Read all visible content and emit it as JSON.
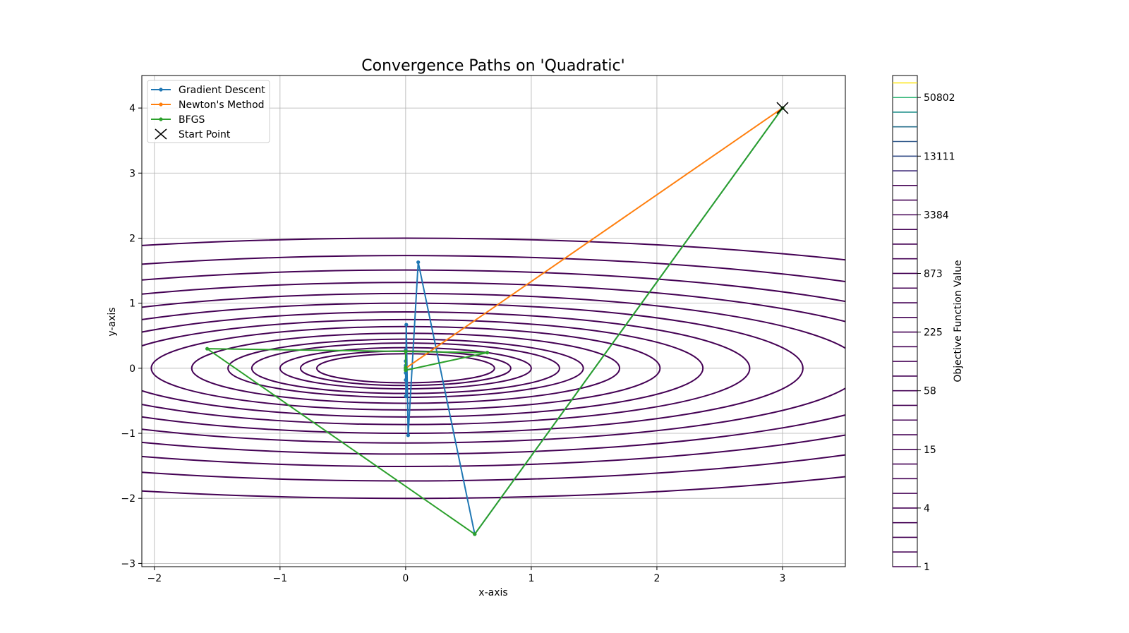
{
  "chart_data": {
    "type": "line",
    "title": "Convergence Paths on 'Quadratic'",
    "xlabel": "x-axis",
    "ylabel": "y-axis",
    "xlim": [
      -2.1,
      3.5
    ],
    "ylim": [
      -3.05,
      4.5
    ],
    "xticks": [
      -2,
      -1,
      0,
      1,
      2,
      3
    ],
    "xtick_labels": [
      "−2",
      "−1",
      "0",
      "1",
      "2",
      "3"
    ],
    "yticks": [
      -3,
      -2,
      -1,
      0,
      1,
      2,
      3,
      4
    ],
    "ytick_labels": [
      "−3",
      "−2",
      "−1",
      "0",
      "1",
      "2",
      "3",
      "4"
    ],
    "grid": true,
    "legend_position": "top-left",
    "contour": {
      "function": "x^2 + 10*y^2",
      "levels": [
        0.5,
        0.7,
        1.0,
        1.5,
        2.0,
        2.9,
        4.1,
        5.6,
        7.5,
        10.0,
        13.2,
        17.4,
        22.8,
        30.0,
        40.0
      ],
      "color": "#440154"
    },
    "series": [
      {
        "name": "Gradient Descent",
        "color": "#1f77b4",
        "marker": "dot",
        "points": [
          [
            3.0,
            4.0
          ],
          [
            0.55,
            -2.55
          ],
          [
            0.1,
            1.63
          ],
          [
            0.02,
            -1.03
          ],
          [
            0.005,
            0.67
          ],
          [
            0.002,
            -0.43
          ],
          [
            0.001,
            0.28
          ],
          [
            0.0,
            -0.18
          ],
          [
            0.0,
            0.11
          ],
          [
            0.0,
            -0.07
          ],
          [
            0.0,
            0.04
          ],
          [
            0.0,
            -0.02
          ],
          [
            0.0,
            0.01
          ],
          [
            0.0,
            0.0
          ]
        ]
      },
      {
        "name": "Newton's Method",
        "color": "#ff7f0e",
        "marker": "dot",
        "points": [
          [
            3.0,
            4.0
          ],
          [
            0.0,
            0.0
          ]
        ]
      },
      {
        "name": "BFGS",
        "color": "#2ca02c",
        "marker": "dot",
        "points": [
          [
            3.0,
            4.0
          ],
          [
            0.55,
            -2.55
          ],
          [
            -1.58,
            0.3
          ],
          [
            0.65,
            0.24
          ],
          [
            0.0,
            -0.03
          ],
          [
            0.0,
            0.26
          ],
          [
            0.0,
            0.01
          ],
          [
            0.0,
            0.0
          ]
        ]
      }
    ],
    "start_point": {
      "name": "Start Point",
      "x": 3.0,
      "y": 4.0,
      "marker": "x",
      "color": "#000000"
    },
    "colorbar": {
      "label": "Objective Function Value",
      "tick_labels": [
        "1",
        "4",
        "15",
        "58",
        "225",
        "873",
        "3384",
        "13111",
        "50802"
      ],
      "levels": 34,
      "line_colors": [
        "#440154",
        "#440154",
        "#440154",
        "#440154",
        "#440154",
        "#440154",
        "#440154",
        "#440154",
        "#440154",
        "#440154",
        "#440154",
        "#440154",
        "#440154",
        "#440154",
        "#440154",
        "#440154",
        "#440154",
        "#440154",
        "#440154",
        "#440154",
        "#440154",
        "#440154",
        "#440154",
        "#440154",
        "#440154",
        "#440154",
        "#440154",
        "#46327e",
        "#3b528b",
        "#365c8d",
        "#2c728e",
        "#21918c",
        "#35b779",
        "#fde725"
      ]
    }
  }
}
